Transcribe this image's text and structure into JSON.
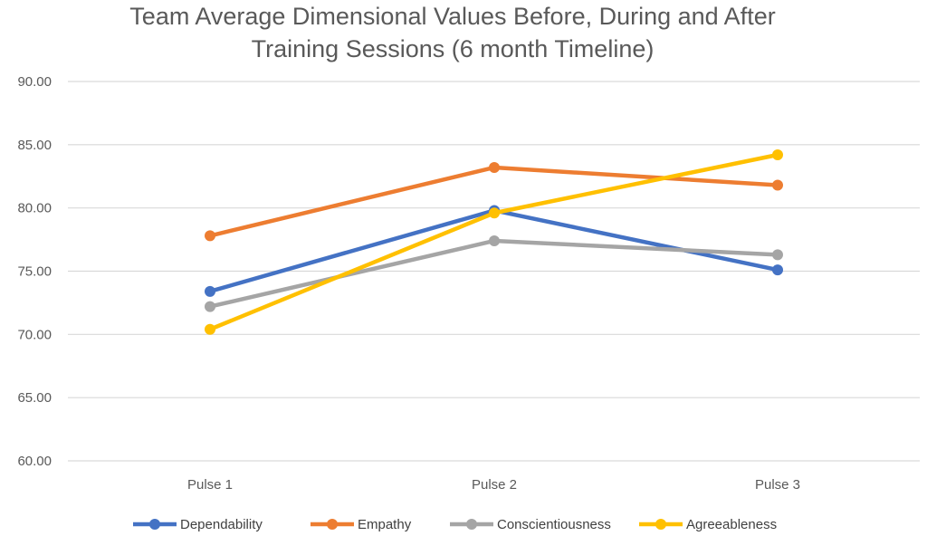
{
  "chart_data": {
    "type": "line",
    "title_lines": [
      "Team Average Dimensional Values Before, During and After",
      "Training Sessions (6 month Timeline)"
    ],
    "categories": [
      "Pulse 1",
      "Pulse 2",
      "Pulse 3"
    ],
    "ylim": [
      60,
      90
    ],
    "yticks": [
      "60.00",
      "65.00",
      "70.00",
      "75.00",
      "80.00",
      "85.00",
      "90.00"
    ],
    "grid": true,
    "legend_position": "bottom",
    "series": [
      {
        "name": "Dependability",
        "color": "#4472C4",
        "values": [
          73.4,
          79.8,
          75.1
        ]
      },
      {
        "name": "Empathy",
        "color": "#ED7D31",
        "values": [
          77.8,
          83.2,
          81.8
        ]
      },
      {
        "name": "Conscientiousness",
        "color": "#A5A5A5",
        "values": [
          72.2,
          77.4,
          76.3
        ]
      },
      {
        "name": "Agreeableness",
        "color": "#FFC000",
        "values": [
          70.4,
          79.6,
          84.2
        ]
      }
    ]
  }
}
